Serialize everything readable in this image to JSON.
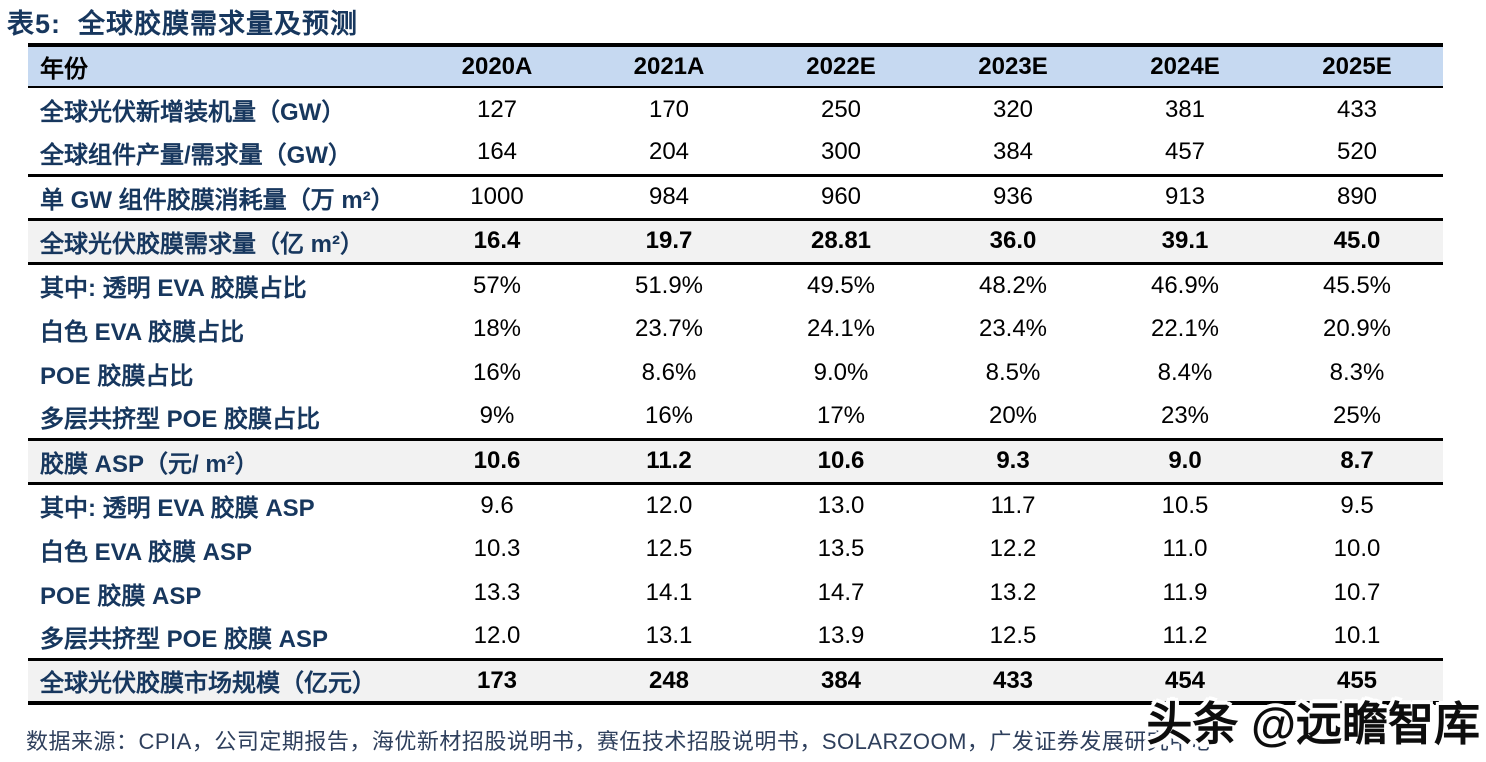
{
  "title": "表5:  全球胶膜需求量及预测",
  "table": {
    "columns": [
      "年份",
      "2020A",
      "2021A",
      "2022E",
      "2023E",
      "2024E",
      "2025E"
    ],
    "rows": [
      {
        "label": "全球光伏新增装机量（GW）",
        "values": [
          "127",
          "170",
          "250",
          "320",
          "381",
          "433"
        ],
        "highlight": false,
        "rule_above": false
      },
      {
        "label": "全球组件产量/需求量（GW）",
        "values": [
          "164",
          "204",
          "300",
          "384",
          "457",
          "520"
        ],
        "highlight": false,
        "rule_above": false
      },
      {
        "label": "单 GW 组件胶膜消耗量（万 m²）",
        "values": [
          "1000",
          "984",
          "960",
          "936",
          "913",
          "890"
        ],
        "highlight": false,
        "rule_above": true
      },
      {
        "label": "全球光伏胶膜需求量（亿 m²）",
        "values": [
          "16.4",
          "19.7",
          "28.81",
          "36.0",
          "39.1",
          "45.0"
        ],
        "highlight": true,
        "rule_above": false
      },
      {
        "label": "其中: 透明 EVA 胶膜占比",
        "values": [
          "57%",
          "51.9%",
          "49.5%",
          "48.2%",
          "46.9%",
          "45.5%"
        ],
        "highlight": false,
        "rule_above": false
      },
      {
        "label": "白色 EVA 胶膜占比",
        "values": [
          "18%",
          "23.7%",
          "24.1%",
          "23.4%",
          "22.1%",
          "20.9%"
        ],
        "highlight": false,
        "rule_above": false
      },
      {
        "label": "POE 胶膜占比",
        "values": [
          "16%",
          "8.6%",
          "9.0%",
          "8.5%",
          "8.4%",
          "8.3%"
        ],
        "highlight": false,
        "rule_above": false
      },
      {
        "label": "多层共挤型 POE 胶膜占比",
        "values": [
          "9%",
          "16%",
          "17%",
          "20%",
          "23%",
          "25%"
        ],
        "highlight": false,
        "rule_above": false
      },
      {
        "label": "胶膜 ASP（元/ m²）",
        "values": [
          "10.6",
          "11.2",
          "10.6",
          "9.3",
          "9.0",
          "8.7"
        ],
        "highlight": true,
        "rule_above": false
      },
      {
        "label": "其中: 透明 EVA 胶膜 ASP",
        "values": [
          "9.6",
          "12.0",
          "13.0",
          "11.7",
          "10.5",
          "9.5"
        ],
        "highlight": false,
        "rule_above": false
      },
      {
        "label": "白色 EVA 胶膜 ASP",
        "values": [
          "10.3",
          "12.5",
          "13.5",
          "12.2",
          "11.0",
          "10.0"
        ],
        "highlight": false,
        "rule_above": false
      },
      {
        "label": "POE 胶膜 ASP",
        "values": [
          "13.3",
          "14.1",
          "14.7",
          "13.2",
          "11.9",
          "10.7"
        ],
        "highlight": false,
        "rule_above": false
      },
      {
        "label": "多层共挤型 POE 胶膜 ASP",
        "values": [
          "12.0",
          "13.1",
          "13.9",
          "12.5",
          "11.2",
          "10.1"
        ],
        "highlight": false,
        "rule_above": false
      },
      {
        "label": "全球光伏胶膜市场规模（亿元）",
        "values": [
          "173",
          "248",
          "384",
          "433",
          "454",
          "455"
        ],
        "highlight": true,
        "rule_above": false
      }
    ]
  },
  "source": "数据来源：CPIA，公司定期报告，海优新材招股说明书，赛伍技术招股说明书，SOLARZOOM，广发证券发展研究中心",
  "watermark": "头条 @远瞻智库",
  "colors": {
    "header_bg": "#c6d9f1",
    "highlight_bg": "#f2f2f2",
    "title_color": "#17375e",
    "label_color": "#17375e",
    "value_color": "#000000",
    "border_color": "#000000",
    "source_color": "#2e3f5c"
  }
}
